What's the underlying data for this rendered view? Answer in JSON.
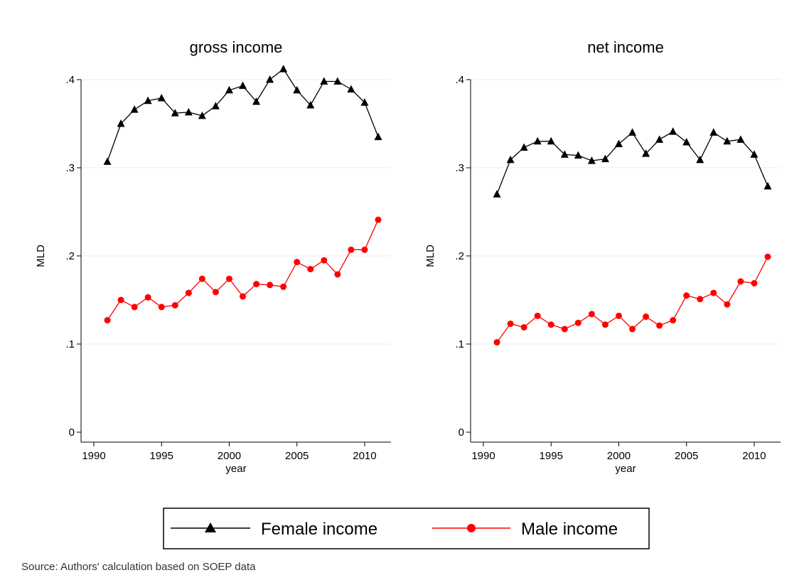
{
  "source_note": "Source: Authors' calculation based on SOEP data",
  "legend": [
    {
      "label": "Female income",
      "color": "#000000",
      "marker": "triangle"
    },
    {
      "label": "Male income",
      "color": "#ff0000",
      "marker": "circle"
    }
  ],
  "chart_data": [
    {
      "type": "line",
      "title": "gross income",
      "xlabel": "year",
      "ylabel": "MLD",
      "xlim": [
        1990,
        2011
      ],
      "ylim": [
        0,
        0.4
      ],
      "xticks": [
        1990,
        1995,
        2000,
        2005,
        2010
      ],
      "yticks": [
        0,
        0.1,
        0.2,
        0.3,
        0.4
      ],
      "ytick_labels": [
        "0",
        ".1",
        ".2",
        ".3",
        ".4"
      ],
      "grid": true,
      "x": [
        1991,
        1992,
        1993,
        1994,
        1995,
        1996,
        1997,
        1998,
        1999,
        2000,
        2001,
        2002,
        2003,
        2004,
        2005,
        2006,
        2007,
        2008,
        2009,
        2010,
        2011
      ],
      "series": [
        {
          "name": "Female income",
          "color": "#000000",
          "marker": "triangle",
          "values": [
            0.307,
            0.35,
            0.366,
            0.376,
            0.379,
            0.362,
            0.363,
            0.359,
            0.37,
            0.388,
            0.393,
            0.375,
            0.4,
            0.412,
            0.388,
            0.371,
            0.398,
            0.398,
            0.389,
            0.374,
            0.335
          ]
        },
        {
          "name": "Male income",
          "color": "#ff0000",
          "marker": "circle",
          "values": [
            0.127,
            0.15,
            0.142,
            0.153,
            0.142,
            0.144,
            0.158,
            0.174,
            0.159,
            0.174,
            0.154,
            0.168,
            0.167,
            0.165,
            0.193,
            0.185,
            0.195,
            0.179,
            0.207,
            0.207,
            0.241
          ]
        }
      ]
    },
    {
      "type": "line",
      "title": "net income",
      "xlabel": "year",
      "ylabel": "MLD",
      "xlim": [
        1990,
        2011
      ],
      "ylim": [
        0,
        0.4
      ],
      "xticks": [
        1990,
        1995,
        2000,
        2005,
        2010
      ],
      "yticks": [
        0,
        0.1,
        0.2,
        0.3,
        0.4
      ],
      "ytick_labels": [
        "0",
        ".1",
        ".2",
        ".3",
        ".4"
      ],
      "grid": true,
      "x": [
        1991,
        1992,
        1993,
        1994,
        1995,
        1996,
        1997,
        1998,
        1999,
        2000,
        2001,
        2002,
        2003,
        2004,
        2005,
        2006,
        2007,
        2008,
        2009,
        2010,
        2011
      ],
      "series": [
        {
          "name": "Female income",
          "color": "#000000",
          "marker": "triangle",
          "values": [
            0.27,
            0.309,
            0.323,
            0.33,
            0.33,
            0.315,
            0.314,
            0.308,
            0.31,
            0.327,
            0.34,
            0.316,
            0.332,
            0.341,
            0.329,
            0.309,
            0.34,
            0.33,
            0.332,
            0.315,
            0.279
          ]
        },
        {
          "name": "Male income",
          "color": "#ff0000",
          "marker": "circle",
          "values": [
            0.102,
            0.123,
            0.119,
            0.132,
            0.122,
            0.117,
            0.124,
            0.134,
            0.122,
            0.132,
            0.117,
            0.131,
            0.121,
            0.127,
            0.155,
            0.151,
            0.158,
            0.145,
            0.171,
            0.169,
            0.199
          ]
        }
      ]
    }
  ]
}
